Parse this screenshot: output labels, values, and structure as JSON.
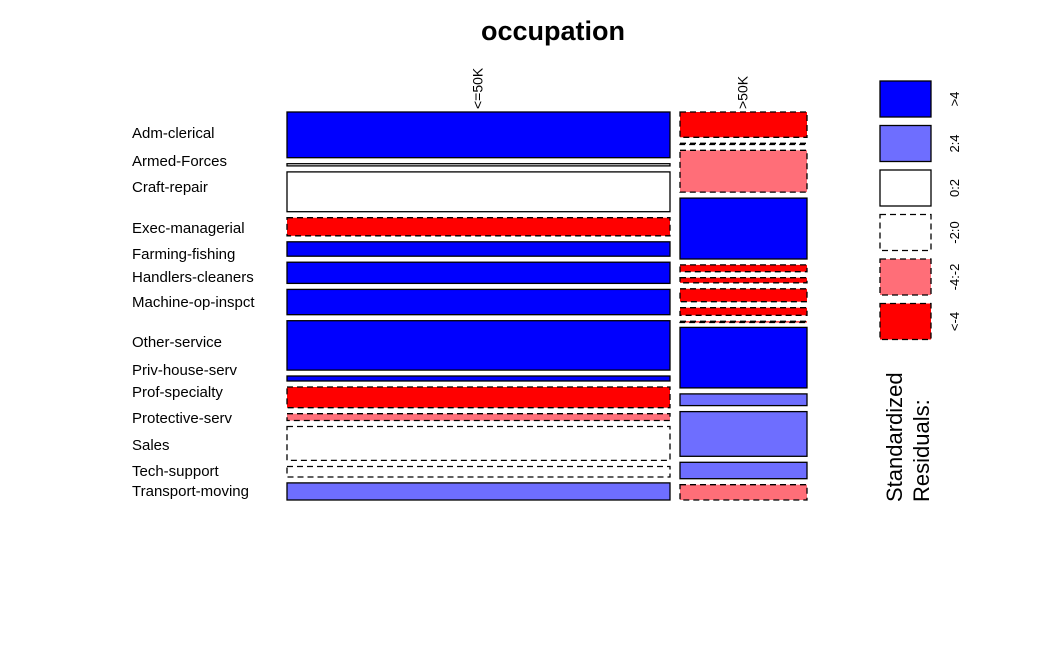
{
  "chart_data": {
    "type": "mosaic",
    "title": "occupation",
    "columns": [
      "<=50K",
      ">50K"
    ],
    "column_proportions": [
      0.75,
      0.25
    ],
    "rows": [
      {
        "name": "Adm-clerical",
        "cells": [
          {
            "fraction": 0.866,
            "residual": ">4"
          },
          {
            "fraction": 0.134,
            "residual": "<-4"
          }
        ]
      },
      {
        "name": "Armed-Forces",
        "cells": [
          {
            "fraction": 0.889,
            "residual": "0:2"
          },
          {
            "fraction": 0.111,
            "residual": "-2:0"
          }
        ]
      },
      {
        "name": "Craft-repair",
        "cells": [
          {
            "fraction": 0.773,
            "residual": "0:2"
          },
          {
            "fraction": 0.227,
            "residual": "-4:-2"
          }
        ]
      },
      {
        "name": "Exec-managerial",
        "cells": [
          {
            "fraction": 0.516,
            "residual": "<-4"
          },
          {
            "fraction": 0.484,
            "residual": ">4"
          }
        ]
      },
      {
        "name": "Farming-fishing",
        "cells": [
          {
            "fraction": 0.884,
            "residual": ">4"
          },
          {
            "fraction": 0.116,
            "residual": "<-4"
          }
        ]
      },
      {
        "name": "Handlers-cleaners",
        "cells": [
          {
            "fraction": 0.937,
            "residual": ">4"
          },
          {
            "fraction": 0.063,
            "residual": "<-4"
          }
        ]
      },
      {
        "name": "Machine-op-inspct",
        "cells": [
          {
            "fraction": 0.875,
            "residual": ">4"
          },
          {
            "fraction": 0.125,
            "residual": "<-4"
          }
        ]
      },
      {
        "name": "Other-service",
        "cells": [
          {
            "fraction": 0.959,
            "residual": ">4"
          },
          {
            "fraction": 0.041,
            "residual": "<-4"
          }
        ]
      },
      {
        "name": "Priv-house-serv",
        "cells": [
          {
            "fraction": 0.993,
            "residual": ">4"
          },
          {
            "fraction": 0.007,
            "residual": "<-4"
          }
        ]
      },
      {
        "name": "Prof-specialty",
        "cells": [
          {
            "fraction": 0.551,
            "residual": "<-4"
          },
          {
            "fraction": 0.449,
            "residual": ">4"
          }
        ]
      },
      {
        "name": "Protective-serv",
        "cells": [
          {
            "fraction": 0.675,
            "residual": "-4:-2"
          },
          {
            "fraction": 0.325,
            "residual": "2:4"
          }
        ]
      },
      {
        "name": "Sales",
        "cells": [
          {
            "fraction": 0.731,
            "residual": "-2:0"
          },
          {
            "fraction": 0.269,
            "residual": "2:4"
          }
        ]
      },
      {
        "name": "Tech-support",
        "cells": [
          {
            "fraction": 0.695,
            "residual": "-2:0"
          },
          {
            "fraction": 0.305,
            "residual": "2:4"
          }
        ]
      },
      {
        "name": "Transport-moving",
        "cells": [
          {
            "fraction": 0.8,
            "residual": "2:4"
          },
          {
            "fraction": 0.2,
            "residual": "-4:-2"
          }
        ]
      }
    ],
    "legend": {
      "title_lines": [
        "Standardized",
        "Residuals:"
      ],
      "placement": "right",
      "entries": [
        {
          "label": ">4",
          "fill": "#0000ff",
          "dashed": false
        },
        {
          "label": "2:4",
          "fill": "#6e6eff",
          "dashed": false
        },
        {
          "label": "0:2",
          "fill": "#ffffff",
          "dashed": false
        },
        {
          "label": "-2:0",
          "fill": "#ffffff",
          "dashed": true
        },
        {
          "label": "-4:-2",
          "fill": "#ff6e78",
          "dashed": true
        },
        {
          "label": "<-4",
          "fill": "#ff0000",
          "dashed": true
        }
      ]
    }
  }
}
